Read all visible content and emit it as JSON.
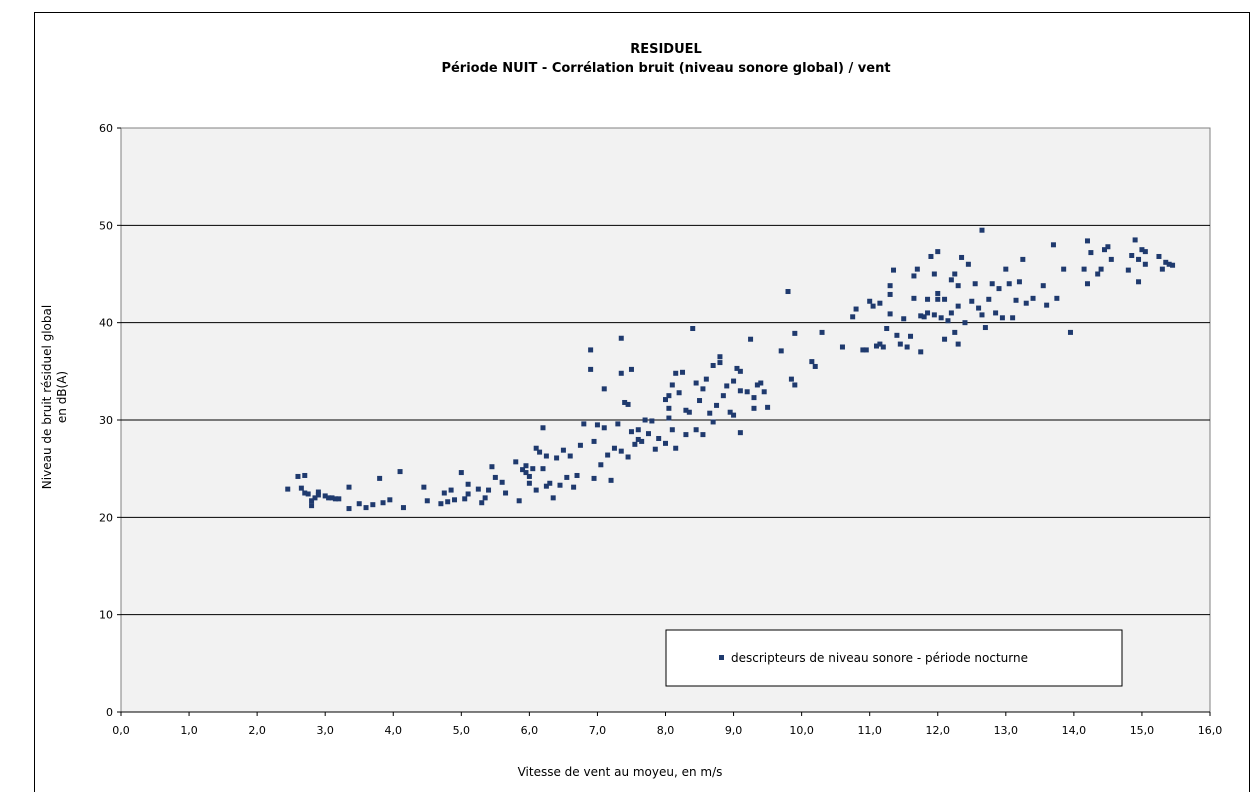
{
  "chart_data": {
    "type": "scatter",
    "title": "RESIDUEL",
    "subtitle": "Période NUIT - Corrélation bruit (niveau sonore global) / vent",
    "xlabel": "Vitesse de vent au moyeu, en m/s",
    "ylabel_lines": [
      "Niveau de bruit résiduel global",
      "en dB(A)"
    ],
    "xlim": [
      0,
      16
    ],
    "ylim": [
      0,
      60
    ],
    "x_ticks": [
      "0,0",
      "1,0",
      "2,0",
      "3,0",
      "4,0",
      "5,0",
      "6,0",
      "7,0",
      "8,0",
      "9,0",
      "10,0",
      "11,0",
      "12,0",
      "13,0",
      "14,0",
      "15,0",
      "16,0"
    ],
    "y_ticks": [
      "0",
      "10",
      "20",
      "30",
      "40",
      "50",
      "60"
    ],
    "grid": "horizontal",
    "legend_position": "bottom-right",
    "plot_background": "#f2f2f2",
    "marker_color": "#1f3a6e",
    "series": [
      {
        "name": "descripteurs de niveau sonore - période nocturne",
        "points": [
          [
            2.45,
            22.9
          ],
          [
            2.6,
            24.2
          ],
          [
            2.65,
            23.0
          ],
          [
            2.7,
            24.3
          ],
          [
            2.7,
            22.5
          ],
          [
            2.75,
            22.4
          ],
          [
            2.8,
            21.2
          ],
          [
            2.8,
            21.7
          ],
          [
            2.85,
            22.0
          ],
          [
            2.9,
            22.6
          ],
          [
            2.9,
            22.3
          ],
          [
            3.0,
            22.2
          ],
          [
            3.05,
            22.0
          ],
          [
            3.1,
            22.0
          ],
          [
            3.15,
            21.9
          ],
          [
            3.2,
            21.9
          ],
          [
            3.35,
            20.9
          ],
          [
            3.35,
            23.1
          ],
          [
            3.5,
            21.4
          ],
          [
            3.6,
            21.0
          ],
          [
            3.7,
            21.3
          ],
          [
            3.8,
            24.0
          ],
          [
            3.85,
            21.5
          ],
          [
            3.95,
            21.8
          ],
          [
            4.1,
            24.7
          ],
          [
            4.15,
            21.0
          ],
          [
            4.45,
            23.1
          ],
          [
            4.5,
            21.7
          ],
          [
            4.7,
            21.4
          ],
          [
            4.75,
            22.5
          ],
          [
            4.8,
            21.6
          ],
          [
            4.85,
            22.8
          ],
          [
            4.9,
            21.8
          ],
          [
            5.0,
            24.6
          ],
          [
            5.05,
            21.9
          ],
          [
            5.1,
            23.4
          ],
          [
            5.1,
            22.4
          ],
          [
            5.25,
            22.9
          ],
          [
            5.3,
            21.5
          ],
          [
            5.35,
            22.0
          ],
          [
            5.4,
            22.8
          ],
          [
            5.45,
            25.2
          ],
          [
            5.5,
            24.1
          ],
          [
            5.6,
            23.6
          ],
          [
            5.65,
            22.5
          ],
          [
            5.8,
            25.7
          ],
          [
            5.85,
            21.7
          ],
          [
            5.9,
            24.9
          ],
          [
            5.95,
            24.6
          ],
          [
            5.95,
            25.3
          ],
          [
            6.0,
            24.2
          ],
          [
            6.0,
            23.5
          ],
          [
            6.05,
            25.0
          ],
          [
            6.1,
            27.1
          ],
          [
            6.1,
            22.8
          ],
          [
            6.15,
            26.7
          ],
          [
            6.2,
            29.2
          ],
          [
            6.2,
            25.0
          ],
          [
            6.25,
            23.2
          ],
          [
            6.25,
            26.3
          ],
          [
            6.3,
            23.5
          ],
          [
            6.35,
            22.0
          ],
          [
            6.4,
            26.1
          ],
          [
            6.45,
            23.3
          ],
          [
            6.5,
            26.9
          ],
          [
            6.55,
            24.1
          ],
          [
            6.6,
            26.3
          ],
          [
            6.65,
            23.1
          ],
          [
            6.7,
            24.3
          ],
          [
            6.75,
            27.4
          ],
          [
            6.8,
            29.6
          ],
          [
            6.95,
            24.0
          ],
          [
            6.9,
            37.2
          ],
          [
            6.9,
            35.2
          ],
          [
            6.95,
            27.8
          ],
          [
            7.0,
            29.5
          ],
          [
            7.05,
            25.4
          ],
          [
            7.1,
            33.2
          ],
          [
            7.1,
            29.2
          ],
          [
            7.15,
            26.4
          ],
          [
            7.2,
            23.8
          ],
          [
            7.25,
            27.1
          ],
          [
            7.3,
            29.6
          ],
          [
            7.35,
            26.8
          ],
          [
            7.35,
            38.4
          ],
          [
            7.35,
            34.8
          ],
          [
            7.4,
            31.8
          ],
          [
            7.45,
            31.6
          ],
          [
            7.45,
            26.2
          ],
          [
            7.5,
            28.8
          ],
          [
            7.5,
            35.2
          ],
          [
            7.55,
            27.5
          ],
          [
            7.6,
            29.0
          ],
          [
            7.6,
            28.0
          ],
          [
            7.65,
            27.8
          ],
          [
            7.7,
            30.0
          ],
          [
            7.75,
            28.6
          ],
          [
            7.8,
            29.9
          ],
          [
            7.85,
            27.0
          ],
          [
            7.9,
            28.1
          ],
          [
            8.0,
            27.6
          ],
          [
            8.0,
            32.1
          ],
          [
            8.05,
            30.2
          ],
          [
            8.05,
            31.2
          ],
          [
            8.05,
            32.5
          ],
          [
            8.1,
            33.6
          ],
          [
            8.1,
            29.0
          ],
          [
            8.15,
            34.8
          ],
          [
            8.15,
            27.1
          ],
          [
            8.2,
            32.8
          ],
          [
            8.25,
            34.9
          ],
          [
            8.3,
            31.0
          ],
          [
            8.3,
            28.5
          ],
          [
            8.35,
            30.8
          ],
          [
            8.4,
            39.4
          ],
          [
            8.45,
            33.8
          ],
          [
            8.45,
            29.0
          ],
          [
            8.5,
            32.0
          ],
          [
            8.55,
            28.5
          ],
          [
            8.55,
            33.2
          ],
          [
            8.6,
            34.2
          ],
          [
            8.65,
            30.7
          ],
          [
            8.7,
            35.6
          ],
          [
            8.7,
            29.8
          ],
          [
            8.75,
            31.5
          ],
          [
            8.8,
            35.9
          ],
          [
            8.8,
            36.5
          ],
          [
            8.85,
            32.5
          ],
          [
            8.9,
            33.5
          ],
          [
            8.95,
            30.8
          ],
          [
            9.0,
            30.5
          ],
          [
            9.0,
            34.0
          ],
          [
            9.05,
            35.3
          ],
          [
            9.1,
            35.0
          ],
          [
            9.1,
            33.0
          ],
          [
            9.1,
            28.7
          ],
          [
            9.2,
            32.9
          ],
          [
            9.25,
            38.3
          ],
          [
            9.3,
            31.2
          ],
          [
            9.3,
            32.3
          ],
          [
            9.35,
            33.6
          ],
          [
            9.4,
            33.8
          ],
          [
            9.45,
            32.9
          ],
          [
            9.5,
            31.3
          ],
          [
            9.7,
            37.1
          ],
          [
            9.8,
            43.2
          ],
          [
            9.85,
            34.2
          ],
          [
            9.9,
            33.6
          ],
          [
            9.9,
            38.9
          ],
          [
            10.15,
            36.0
          ],
          [
            10.2,
            35.5
          ],
          [
            10.3,
            39.0
          ],
          [
            10.6,
            37.5
          ],
          [
            10.75,
            40.6
          ],
          [
            10.8,
            41.4
          ],
          [
            10.9,
            37.2
          ],
          [
            10.95,
            37.2
          ],
          [
            11.0,
            42.2
          ],
          [
            11.05,
            41.7
          ],
          [
            11.1,
            37.6
          ],
          [
            11.15,
            37.8
          ],
          [
            11.15,
            42.0
          ],
          [
            11.2,
            37.5
          ],
          [
            11.25,
            39.4
          ],
          [
            11.3,
            40.9
          ],
          [
            11.3,
            43.8
          ],
          [
            11.3,
            42.9
          ],
          [
            11.35,
            45.4
          ],
          [
            11.4,
            38.7
          ],
          [
            11.45,
            37.8
          ],
          [
            11.5,
            40.4
          ],
          [
            11.55,
            37.5
          ],
          [
            11.6,
            38.6
          ],
          [
            11.65,
            44.8
          ],
          [
            11.65,
            42.5
          ],
          [
            11.7,
            45.5
          ],
          [
            11.75,
            37.0
          ],
          [
            11.75,
            40.7
          ],
          [
            11.8,
            40.6
          ],
          [
            11.85,
            41.0
          ],
          [
            11.85,
            42.4
          ],
          [
            11.9,
            46.8
          ],
          [
            11.95,
            40.8
          ],
          [
            11.95,
            45.0
          ],
          [
            12.0,
            47.3
          ],
          [
            12.0,
            42.4
          ],
          [
            12.0,
            43.0
          ],
          [
            12.05,
            40.5
          ],
          [
            12.1,
            38.3
          ],
          [
            12.1,
            42.4
          ],
          [
            12.15,
            40.2
          ],
          [
            12.2,
            44.4
          ],
          [
            12.2,
            41.0
          ],
          [
            12.25,
            45.0
          ],
          [
            12.25,
            39.0
          ],
          [
            12.3,
            43.8
          ],
          [
            12.3,
            37.8
          ],
          [
            12.3,
            41.7
          ],
          [
            12.35,
            46.7
          ],
          [
            12.4,
            40.0
          ],
          [
            12.45,
            46.0
          ],
          [
            12.5,
            42.2
          ],
          [
            12.55,
            44.0
          ],
          [
            12.6,
            41.5
          ],
          [
            12.65,
            40.8
          ],
          [
            12.7,
            39.5
          ],
          [
            12.75,
            42.4
          ],
          [
            12.8,
            44.0
          ],
          [
            12.85,
            41.0
          ],
          [
            12.9,
            43.5
          ],
          [
            12.95,
            40.5
          ],
          [
            13.0,
            45.5
          ],
          [
            13.05,
            44.0
          ],
          [
            13.1,
            40.5
          ],
          [
            13.15,
            42.3
          ],
          [
            13.2,
            44.2
          ],
          [
            13.25,
            46.5
          ],
          [
            13.3,
            42.0
          ],
          [
            13.4,
            42.5
          ],
          [
            12.65,
            49.5
          ],
          [
            13.55,
            43.8
          ],
          [
            13.6,
            41.8
          ],
          [
            13.7,
            48.0
          ],
          [
            13.75,
            42.5
          ],
          [
            13.85,
            45.5
          ],
          [
            13.95,
            39.0
          ],
          [
            14.15,
            45.5
          ],
          [
            14.2,
            48.4
          ],
          [
            14.2,
            44.0
          ],
          [
            14.25,
            47.2
          ],
          [
            14.35,
            45.0
          ],
          [
            14.4,
            45.5
          ],
          [
            14.45,
            47.5
          ],
          [
            14.5,
            47.8
          ],
          [
            14.55,
            46.5
          ],
          [
            14.8,
            45.4
          ],
          [
            14.85,
            46.9
          ],
          [
            14.9,
            48.5
          ],
          [
            14.95,
            46.5
          ],
          [
            14.95,
            44.2
          ],
          [
            15.0,
            47.5
          ],
          [
            15.05,
            46.0
          ],
          [
            15.05,
            47.3
          ],
          [
            15.25,
            46.8
          ],
          [
            15.3,
            45.5
          ],
          [
            15.35,
            46.2
          ],
          [
            15.4,
            46.0
          ],
          [
            15.45,
            45.9
          ]
        ]
      }
    ]
  }
}
